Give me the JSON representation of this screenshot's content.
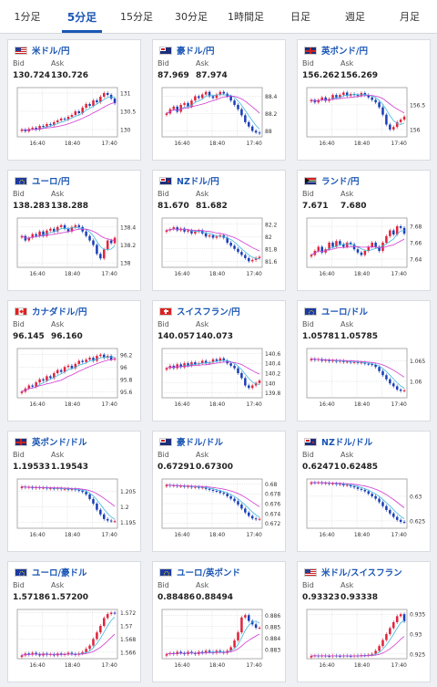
{
  "tabs": [
    {
      "label": "1分足",
      "active": false
    },
    {
      "label": "5分足",
      "active": true
    },
    {
      "label": "15分足",
      "active": false
    },
    {
      "label": "30分足",
      "active": false
    },
    {
      "label": "1時間足",
      "active": false
    },
    {
      "label": "日足",
      "active": false
    },
    {
      "label": "週足",
      "active": false
    },
    {
      "label": "月足",
      "active": false
    }
  ],
  "labels": {
    "bid": "Bid",
    "ask": "Ask"
  },
  "colors": {
    "up": "#e0243c",
    "down": "#1a3fb8",
    "ma_short": "#3fb8e0",
    "ma_long": "#d23bd2",
    "grid": "#cfd3d8"
  },
  "cards": [
    {
      "pair": "米ドル/円",
      "flags": [
        "us",
        "jp"
      ],
      "bid": "130.724",
      "ask": "130.726",
      "ticks": [
        "131",
        "130.5",
        "130"
      ],
      "ylim": [
        129.8,
        131.15
      ],
      "x_ticks": [
        "16:40",
        "18:40",
        "17:40"
      ],
      "closes": [
        130.0,
        129.95,
        130.02,
        130.05,
        130.0,
        130.1,
        130.08,
        130.15,
        130.12,
        130.2,
        130.25,
        130.3,
        130.28,
        130.35,
        130.4,
        130.5,
        130.45,
        130.6,
        130.7,
        130.65,
        130.8,
        130.75,
        130.9,
        131.0,
        130.95,
        130.85,
        130.72
      ]
    },
    {
      "pair": "豪ドル/円",
      "flags": [
        "au",
        "jp"
      ],
      "bid": "87.969",
      "ask": "87.974",
      "ticks": [
        "88.4",
        "88.2",
        "88"
      ],
      "ylim": [
        87.93,
        88.5
      ],
      "x_ticks": [
        "16:40",
        "18:40",
        "17:40"
      ],
      "closes": [
        88.2,
        88.25,
        88.28,
        88.22,
        88.3,
        88.32,
        88.28,
        88.35,
        88.4,
        88.38,
        88.42,
        88.45,
        88.4,
        88.38,
        88.42,
        88.45,
        88.43,
        88.4,
        88.35,
        88.3,
        88.25,
        88.18,
        88.1,
        88.05,
        88.0,
        87.98,
        87.97
      ]
    },
    {
      "pair": "英ポンド/円",
      "flags": [
        "gb",
        "jp"
      ],
      "bid": "156.262",
      "ask": "156.269",
      "ticks": [
        "156.5",
        "156"
      ],
      "ylim": [
        155.85,
        156.85
      ],
      "x_ticks": [
        "16:40",
        "18:40",
        "17:40"
      ],
      "closes": [
        156.6,
        156.55,
        156.6,
        156.65,
        156.58,
        156.62,
        156.7,
        156.65,
        156.7,
        156.75,
        156.68,
        156.72,
        156.7,
        156.68,
        156.74,
        156.7,
        156.65,
        156.6,
        156.55,
        156.45,
        156.3,
        156.1,
        156.0,
        156.05,
        156.15,
        156.2,
        156.26
      ]
    },
    {
      "pair": "ユーロ/円",
      "flags": [
        "eu",
        "jp"
      ],
      "bid": "138.283",
      "ask": "138.288",
      "ticks": [
        "138.4",
        "138.2",
        "138"
      ],
      "ylim": [
        137.95,
        138.5
      ],
      "x_ticks": [
        "16:40",
        "18:40",
        "17:40"
      ],
      "closes": [
        138.3,
        138.25,
        138.28,
        138.32,
        138.3,
        138.35,
        138.3,
        138.36,
        138.38,
        138.35,
        138.4,
        138.42,
        138.38,
        138.35,
        138.4,
        138.42,
        138.4,
        138.35,
        138.3,
        138.25,
        138.2,
        138.1,
        138.05,
        138.15,
        138.25,
        138.22,
        138.28
      ]
    },
    {
      "pair": "NZドル/円",
      "flags": [
        "nz",
        "jp"
      ],
      "bid": "81.670",
      "ask": "81.682",
      "ticks": [
        "82.2",
        "82",
        "81.8",
        "81.6"
      ],
      "ylim": [
        81.5,
        82.3
      ],
      "x_ticks": [
        "16:40",
        "18:40",
        "17:40"
      ],
      "closes": [
        82.1,
        82.12,
        82.15,
        82.1,
        82.13,
        82.08,
        82.1,
        82.05,
        82.08,
        82.1,
        82.05,
        82.0,
        82.02,
        81.98,
        82.0,
        82.02,
        81.98,
        81.9,
        81.85,
        81.8,
        81.75,
        81.7,
        81.65,
        81.6,
        81.62,
        81.65,
        81.67
      ]
    },
    {
      "pair": "ランド/円",
      "flags": [
        "za",
        "jp"
      ],
      "bid": "7.671",
      "ask": "7.680",
      "ticks": [
        "7.68",
        "7.66",
        "7.64"
      ],
      "ylim": [
        7.63,
        7.69
      ],
      "x_ticks": [
        "16:40",
        "18:40",
        "17:40"
      ],
      "closes": [
        7.645,
        7.65,
        7.655,
        7.648,
        7.652,
        7.66,
        7.655,
        7.662,
        7.658,
        7.655,
        7.66,
        7.658,
        7.652,
        7.648,
        7.645,
        7.65,
        7.655,
        7.66,
        7.655,
        7.65,
        7.66,
        7.668,
        7.675,
        7.67,
        7.68,
        7.678,
        7.671
      ]
    },
    {
      "pair": "カナダドル/円",
      "flags": [
        "ca",
        "jp"
      ],
      "bid": "96.145",
      "ask": "96.160",
      "ticks": [
        "96.2",
        "96",
        "95.8",
        "95.6"
      ],
      "ylim": [
        95.5,
        96.3
      ],
      "x_ticks": [
        "16:40",
        "18:40",
        "17:40"
      ],
      "closes": [
        95.6,
        95.65,
        95.7,
        95.68,
        95.75,
        95.8,
        95.78,
        95.85,
        95.82,
        95.9,
        95.95,
        95.92,
        96.0,
        96.02,
        95.98,
        96.05,
        96.1,
        96.08,
        96.12,
        96.15,
        96.1,
        96.18,
        96.2,
        96.15,
        96.18,
        96.12,
        96.14
      ]
    },
    {
      "pair": "スイスフラン/円",
      "flags": [
        "ch",
        "jp"
      ],
      "bid": "140.057",
      "ask": "140.073",
      "ticks": [
        "140.6",
        "140.4",
        "140.2",
        "140",
        "139.8"
      ],
      "ylim": [
        139.7,
        140.7
      ],
      "x_ticks": [
        "16:40",
        "18:40",
        "17:40"
      ],
      "closes": [
        140.3,
        140.35,
        140.3,
        140.38,
        140.32,
        140.4,
        140.35,
        140.42,
        140.38,
        140.4,
        140.45,
        140.4,
        140.42,
        140.48,
        140.45,
        140.5,
        140.45,
        140.4,
        140.35,
        140.3,
        140.2,
        140.1,
        139.95,
        139.9,
        139.95,
        140.0,
        140.05
      ]
    },
    {
      "pair": "ユーロ/ドル",
      "flags": [
        "eu",
        "us"
      ],
      "bid": "1.05781",
      "ask": "1.05785",
      "ticks": [
        "1.065",
        "1.06"
      ],
      "ylim": [
        1.056,
        1.068
      ],
      "x_ticks": [
        "16:40",
        "18:40",
        "17:40"
      ],
      "closes": [
        1.0655,
        1.0652,
        1.0654,
        1.065,
        1.0652,
        1.0649,
        1.0651,
        1.0648,
        1.065,
        1.0647,
        1.0648,
        1.0646,
        1.0647,
        1.0645,
        1.0646,
        1.0643,
        1.0642,
        1.064,
        1.0635,
        1.0625,
        1.0615,
        1.0605,
        1.0595,
        1.0588,
        1.058,
        1.0577,
        1.0578
      ]
    },
    {
      "pair": "英ポンド/ドル",
      "flags": [
        "gb",
        "us"
      ],
      "bid": "1.19533",
      "ask": "1.19543",
      "ticks": [
        "1.205",
        "1.2",
        "1.195"
      ],
      "ylim": [
        1.193,
        1.209
      ],
      "x_ticks": [
        "16:40",
        "18:40",
        "17:40"
      ],
      "closes": [
        1.2065,
        1.2062,
        1.2064,
        1.206,
        1.2063,
        1.2061,
        1.2062,
        1.2059,
        1.206,
        1.2058,
        1.206,
        1.2057,
        1.2058,
        1.2056,
        1.2057,
        1.2055,
        1.2052,
        1.2048,
        1.204,
        1.2025,
        1.201,
        1.199,
        1.1975,
        1.196,
        1.1955,
        1.1953,
        1.1953
      ]
    },
    {
      "pair": "豪ドル/ドル",
      "flags": [
        "au",
        "us"
      ],
      "bid": "0.67291",
      "ask": "0.67300",
      "ticks": [
        "0.68",
        "0.678",
        "0.676",
        "0.674",
        "0.672"
      ],
      "ylim": [
        0.671,
        0.681
      ],
      "x_ticks": [
        "16:40",
        "18:40",
        "17:40"
      ],
      "closes": [
        0.6798,
        0.6796,
        0.6797,
        0.6795,
        0.6796,
        0.6794,
        0.6795,
        0.6793,
        0.6794,
        0.6792,
        0.6793,
        0.679,
        0.6788,
        0.6786,
        0.6785,
        0.6782,
        0.678,
        0.6775,
        0.677,
        0.6765,
        0.6758,
        0.675,
        0.6742,
        0.6735,
        0.673,
        0.6728,
        0.6729
      ]
    },
    {
      "pair": "NZドル/ドル",
      "flags": [
        "nz",
        "us"
      ],
      "bid": "0.62471",
      "ask": "0.62485",
      "ticks": [
        "0.63",
        "0.625"
      ],
      "ylim": [
        0.6235,
        0.6335
      ],
      "x_ticks": [
        "16:40",
        "18:40",
        "17:40"
      ],
      "closes": [
        0.6328,
        0.6327,
        0.6328,
        0.6326,
        0.6327,
        0.6325,
        0.6326,
        0.6324,
        0.6325,
        0.6322,
        0.6323,
        0.632,
        0.6318,
        0.6315,
        0.6313,
        0.631,
        0.6305,
        0.63,
        0.6295,
        0.6288,
        0.628,
        0.6272,
        0.6265,
        0.6258,
        0.6252,
        0.6248,
        0.6247
      ]
    },
    {
      "pair": "ユーロ/豪ドル",
      "flags": [
        "eu",
        "au"
      ],
      "bid": "1.57186",
      "ask": "1.57200",
      "ticks": [
        "1.572",
        "1.57",
        "1.568",
        "1.566"
      ],
      "ylim": [
        1.565,
        1.5725
      ],
      "x_ticks": [
        "16:40",
        "18:40",
        "17:40"
      ],
      "closes": [
        1.5655,
        1.5658,
        1.5656,
        1.5659,
        1.5657,
        1.5655,
        1.5658,
        1.5656,
        1.5657,
        1.5655,
        1.5658,
        1.5656,
        1.5657,
        1.5659,
        1.5657,
        1.5656,
        1.5658,
        1.566,
        1.5665,
        1.567,
        1.568,
        1.569,
        1.57,
        1.5712,
        1.5718,
        1.572,
        1.5719
      ]
    },
    {
      "pair": "ユーロ/英ポンド",
      "flags": [
        "eu",
        "gb"
      ],
      "bid": "0.88486",
      "ask": "0.88494",
      "ticks": [
        "0.886",
        "0.885",
        "0.884",
        "0.883"
      ],
      "ylim": [
        0.8822,
        0.8865
      ],
      "x_ticks": [
        "16:40",
        "18:40",
        "17:40"
      ],
      "closes": [
        0.8826,
        0.8827,
        0.8826,
        0.8828,
        0.8827,
        0.8826,
        0.8828,
        0.8827,
        0.8826,
        0.8828,
        0.8827,
        0.8829,
        0.8828,
        0.8827,
        0.8829,
        0.8828,
        0.8827,
        0.8829,
        0.8832,
        0.8838,
        0.8845,
        0.8858,
        0.886,
        0.8855,
        0.8852,
        0.8849,
        0.8849
      ]
    },
    {
      "pair": "米ドル/スイスフラン",
      "flags": [
        "us",
        "ch"
      ],
      "bid": "0.93323",
      "ask": "0.93338",
      "ticks": [
        "0.935",
        "0.93",
        "0.925"
      ],
      "ylim": [
        0.9238,
        0.9362
      ],
      "x_ticks": [
        "16:40",
        "18:40",
        "17:40"
      ],
      "closes": [
        0.9245,
        0.9246,
        0.9244,
        0.9246,
        0.9245,
        0.9244,
        0.9246,
        0.9245,
        0.9244,
        0.9246,
        0.9245,
        0.9244,
        0.9246,
        0.9245,
        0.9247,
        0.9246,
        0.9248,
        0.925,
        0.9258,
        0.927,
        0.9285,
        0.93,
        0.9315,
        0.933,
        0.9345,
        0.935,
        0.9332
      ]
    }
  ]
}
